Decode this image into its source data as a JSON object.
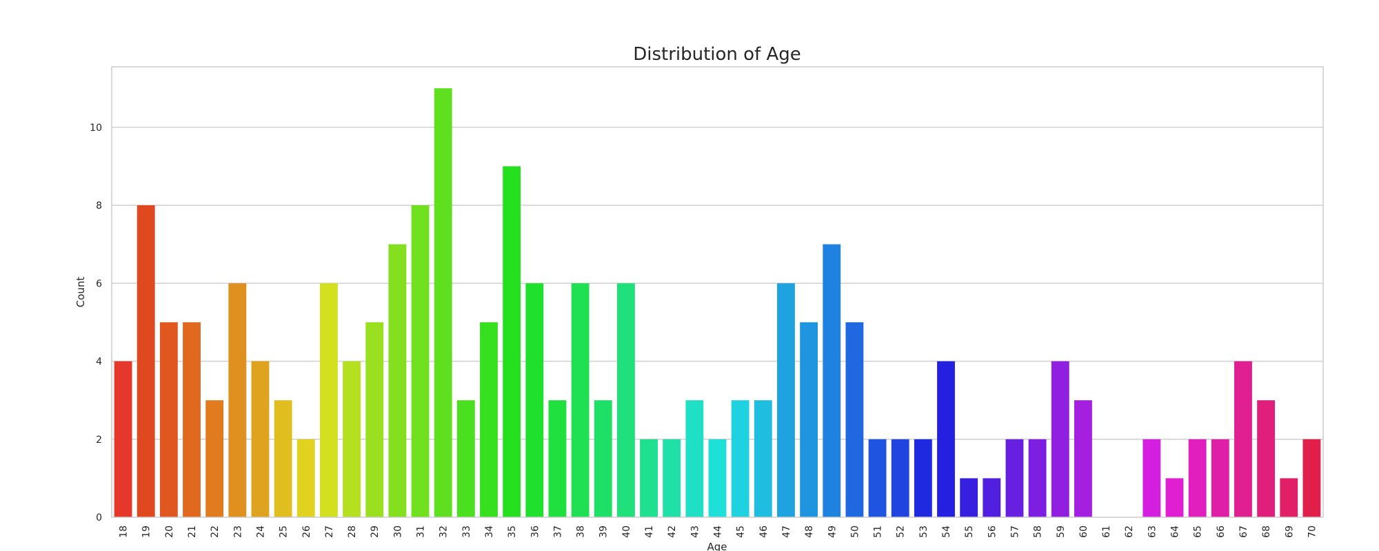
{
  "chart_data": {
    "type": "bar",
    "title": "Distribution of Age",
    "xlabel": "Age",
    "ylabel": "Count",
    "ylim": [
      0,
      11.55
    ],
    "yticks": [
      0,
      2,
      4,
      6,
      8,
      10
    ],
    "grid": true,
    "categories": [
      "18",
      "19",
      "20",
      "21",
      "22",
      "23",
      "24",
      "25",
      "26",
      "27",
      "28",
      "29",
      "30",
      "31",
      "32",
      "33",
      "34",
      "35",
      "36",
      "37",
      "38",
      "39",
      "40",
      "41",
      "42",
      "43",
      "44",
      "45",
      "46",
      "47",
      "48",
      "49",
      "50",
      "51",
      "52",
      "53",
      "54",
      "55",
      "56",
      "57",
      "58",
      "59",
      "60",
      "61",
      "62",
      "63",
      "64",
      "65",
      "66",
      "67",
      "68",
      "69",
      "70"
    ],
    "values": [
      4,
      8,
      5,
      5,
      3,
      6,
      4,
      3,
      2,
      6,
      4,
      5,
      7,
      8,
      11,
      3,
      5,
      9,
      6,
      3,
      6,
      3,
      6,
      2,
      2,
      3,
      2,
      3,
      3,
      6,
      5,
      7,
      5,
      2,
      2,
      2,
      4,
      1,
      1,
      2,
      2,
      4,
      3,
      0,
      0,
      2,
      1,
      2,
      2,
      4,
      3,
      1,
      2
    ],
    "palette": "hsv",
    "colors": [
      "#e5372a",
      "#e0481f",
      "#e0571f",
      "#e0681f",
      "#e07c1f",
      "#e0901f",
      "#e0a31f",
      "#e0be1f",
      "#e0d21f",
      "#d2e01f",
      "#b5e01f",
      "#9be01f",
      "#84e01f",
      "#70e01f",
      "#5ee01f",
      "#4be01f",
      "#37e01f",
      "#25e01f",
      "#1fe02c",
      "#1fe03f",
      "#1fe053",
      "#1fe066",
      "#1fe07a",
      "#1fe08e",
      "#1fe0a6",
      "#1fe0c4",
      "#1fe0d8",
      "#1fd2e0",
      "#1fbee0",
      "#1fa3e0",
      "#1f95e0",
      "#1f81e0",
      "#1f68e0",
      "#1f54e0",
      "#1f44e0",
      "#1f2ae0",
      "#251fe0",
      "#371fe0",
      "#501fe0",
      "#671fe0",
      "#7d1fe0",
      "#901fe0",
      "#a51fe0",
      "#b51fe0",
      "#c51fe0",
      "#d51fe0",
      "#e01fd2",
      "#e01fbe",
      "#e01fa8",
      "#e01f90",
      "#e01f7c",
      "#e01f66",
      "#e01f4b"
    ]
  }
}
